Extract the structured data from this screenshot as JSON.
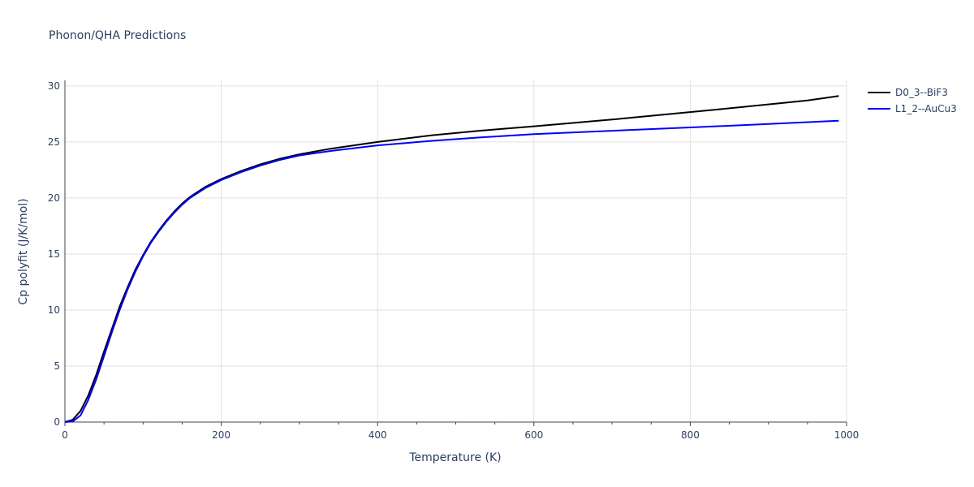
{
  "chart_data": {
    "type": "line",
    "title": "Phonon/QHA Predictions",
    "xlabel": "Temperature (K)",
    "ylabel": "Cp polyfit (J/K/mol)",
    "xlim": [
      0,
      1000
    ],
    "ylim": [
      0,
      30.5
    ],
    "xticks": [
      "0",
      "200",
      "400",
      "600",
      "800",
      "1000"
    ],
    "yticks": [
      "0",
      "5",
      "10",
      "15",
      "20",
      "25",
      "30"
    ],
    "grid": true,
    "legend_position": "top-right",
    "series": [
      {
        "name": "D0_3--BiF3",
        "color": "#000000",
        "points": [
          [
            0,
            0
          ],
          [
            10,
            0.2
          ],
          [
            20,
            1.0
          ],
          [
            30,
            2.4
          ],
          [
            40,
            4.2
          ],
          [
            50,
            6.3
          ],
          [
            60,
            8.3
          ],
          [
            70,
            10.3
          ],
          [
            80,
            12.0
          ],
          [
            90,
            13.6
          ],
          [
            100,
            14.9
          ],
          [
            110,
            16.1
          ],
          [
            120,
            17.1
          ],
          [
            130,
            18.0
          ],
          [
            140,
            18.8
          ],
          [
            150,
            19.5
          ],
          [
            160,
            20.1
          ],
          [
            180,
            21.0
          ],
          [
            200,
            21.7
          ],
          [
            225,
            22.4
          ],
          [
            250,
            23.0
          ],
          [
            275,
            23.5
          ],
          [
            300,
            23.9
          ],
          [
            340,
            24.4
          ],
          [
            400,
            25.0
          ],
          [
            470,
            25.6
          ],
          [
            530,
            26.0
          ],
          [
            600,
            26.4
          ],
          [
            700,
            27.0
          ],
          [
            835,
            27.9
          ],
          [
            950,
            28.7
          ],
          [
            990,
            29.1
          ]
        ]
      },
      {
        "name": "L1_2--AuCu3",
        "color": "#0000ff",
        "points": [
          [
            0,
            0
          ],
          [
            10,
            0.05
          ],
          [
            20,
            0.6
          ],
          [
            30,
            2.0
          ],
          [
            40,
            3.8
          ],
          [
            50,
            5.9
          ],
          [
            60,
            8.0
          ],
          [
            70,
            10.0
          ],
          [
            80,
            11.8
          ],
          [
            90,
            13.4
          ],
          [
            100,
            14.8
          ],
          [
            110,
            16.0
          ],
          [
            120,
            17.0
          ],
          [
            130,
            17.9
          ],
          [
            140,
            18.7
          ],
          [
            150,
            19.4
          ],
          [
            160,
            20.0
          ],
          [
            180,
            20.9
          ],
          [
            200,
            21.6
          ],
          [
            225,
            22.3
          ],
          [
            250,
            22.9
          ],
          [
            275,
            23.4
          ],
          [
            300,
            23.8
          ],
          [
            340,
            24.2
          ],
          [
            400,
            24.7
          ],
          [
            470,
            25.1
          ],
          [
            530,
            25.4
          ],
          [
            600,
            25.7
          ],
          [
            700,
            26.0
          ],
          [
            800,
            26.3
          ],
          [
            900,
            26.6
          ],
          [
            990,
            26.9
          ]
        ]
      }
    ]
  }
}
